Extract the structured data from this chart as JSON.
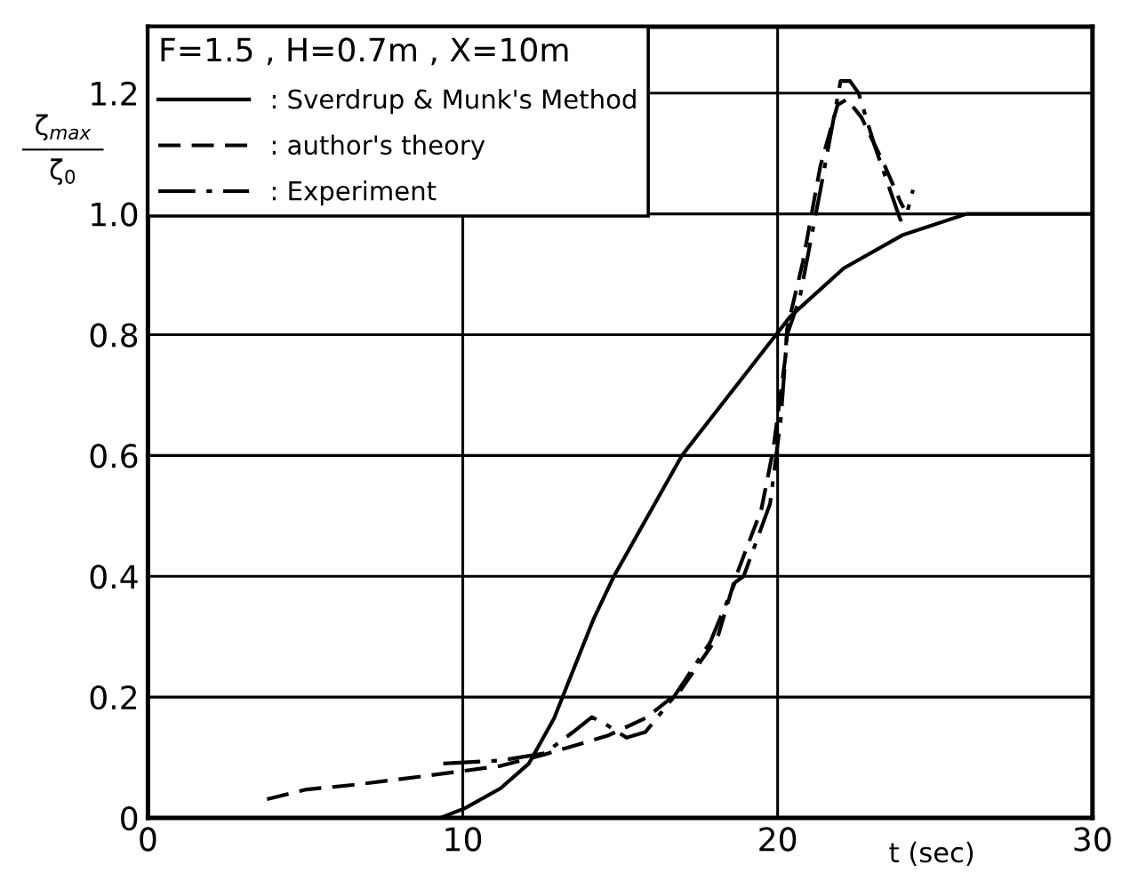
{
  "chart_data": {
    "type": "line",
    "xlabel": "t (sec)",
    "ylabel": "ζ$_{max}$\n―――\nζ$_{0}$",
    "legend_title": "F=1.5 , H=0.7m , X=10m",
    "xlim": [
      0,
      30
    ],
    "xticks": [
      0,
      10,
      20,
      30
    ],
    "ylim": [
      0,
      1.31
    ],
    "yticks": [
      0,
      0.2,
      0.4,
      0.6,
      0.8,
      {
        "value": 1.0,
        "label": "1.0"
      },
      1.2
    ],
    "grid": true,
    "legend": "top left",
    "marker": "none",
    "series": [
      {
        "name": ": Sverdrup & Munk's Method",
        "color": "#000000",
        "line_style": "solid",
        "x": [
          9.3,
          10.07,
          11.2,
          12.1,
          12.9,
          14.16,
          14.8,
          16.96,
          19.95,
          20.4,
          22.1,
          23.97,
          26.0,
          30.0
        ],
        "values": [
          0,
          0.016,
          0.049,
          0.09,
          0.165,
          0.33,
          0.4,
          0.6,
          0.8,
          0.83,
          0.91,
          0.965,
          1.0,
          1.0
        ]
      },
      {
        "name": ": author's theory",
        "color": "#000000",
        "line_style": "dashed",
        "x": [
          3.78,
          5.03,
          6.6,
          8.9,
          11.2,
          12.6,
          14.6,
          15.8,
          16.9,
          18.1,
          18.5,
          18.64,
          19.48,
          19.86,
          20.24,
          20.3,
          20.8,
          21.36,
          21.9,
          22.2,
          22.66,
          23.4,
          23.9,
          24.0
        ],
        "values": [
          0.031,
          0.047,
          0.055,
          0.07,
          0.086,
          0.105,
          0.136,
          0.165,
          0.21,
          0.3,
          0.37,
          0.395,
          0.51,
          0.61,
          0.76,
          0.81,
          0.92,
          1.08,
          1.18,
          1.19,
          1.16,
          1.08,
          1.02,
          1.01
        ]
      },
      {
        "name": ": Experiment",
        "color": "#000000",
        "line_style": "dashdot",
        "x": [
          9.38,
          11.2,
          12.6,
          13.5,
          14.1,
          14.6,
          15.2,
          15.8,
          16.7,
          17.85,
          18.65,
          18.92,
          19.76,
          20.1,
          20.3,
          20.7,
          21.36,
          22.0,
          22.3,
          22.57,
          23.1,
          23.7,
          23.9,
          24.1,
          24.3
        ],
        "values": [
          0.09,
          0.095,
          0.107,
          0.142,
          0.167,
          0.153,
          0.133,
          0.142,
          0.2,
          0.29,
          0.39,
          0.4,
          0.52,
          0.66,
          0.8,
          0.86,
          1.04,
          1.22,
          1.22,
          1.2,
          1.11,
          1.02,
          0.99,
          1.0,
          1.04
        ]
      }
    ]
  }
}
